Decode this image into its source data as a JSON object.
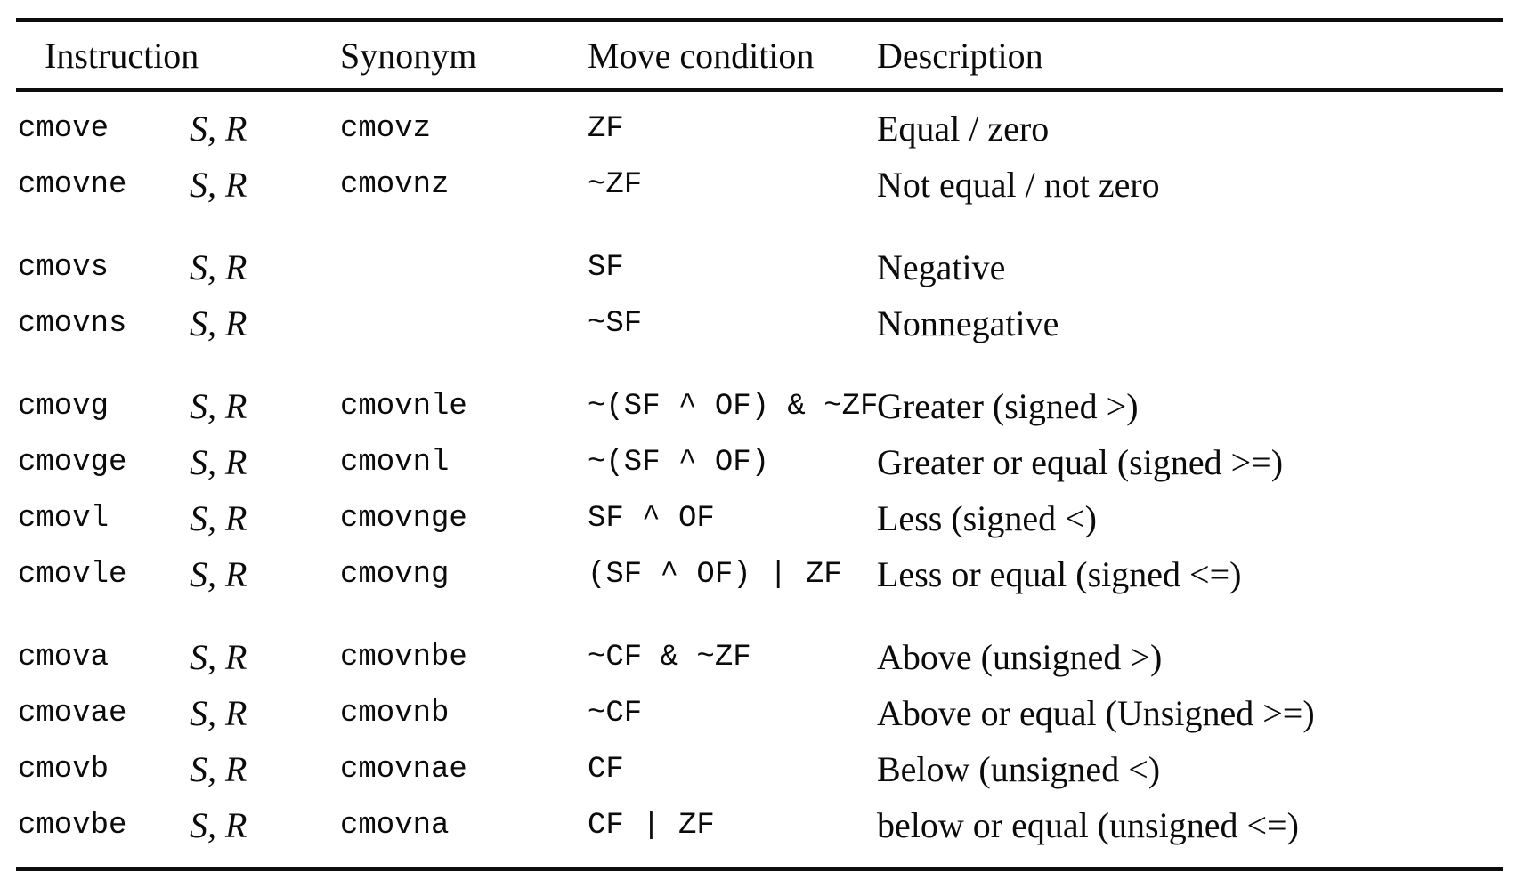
{
  "colors": {
    "background": "#ffffff",
    "text": "#0b0b0b",
    "rule": "#0d0d0d"
  },
  "table": {
    "header": {
      "instruction": "Instruction",
      "synonym": "Synonym",
      "condition": "Move condition",
      "description": "Description"
    },
    "groups": [
      {
        "rows": [
          {
            "instruction": "cmove",
            "operands": "S, R",
            "synonym": "cmovz",
            "condition": "ZF",
            "description": "Equal / zero"
          },
          {
            "instruction": "cmovne",
            "operands": "S, R",
            "synonym": "cmovnz",
            "condition": "~ZF",
            "description": "Not equal / not zero"
          }
        ]
      },
      {
        "rows": [
          {
            "instruction": "cmovs",
            "operands": "S, R",
            "synonym": "",
            "condition": "SF",
            "description": "Negative"
          },
          {
            "instruction": "cmovns",
            "operands": "S, R",
            "synonym": "",
            "condition": "~SF",
            "description": "Nonnegative"
          }
        ]
      },
      {
        "rows": [
          {
            "instruction": "cmovg",
            "operands": "S, R",
            "synonym": "cmovnle",
            "condition": "~(SF ^ OF) & ~ZF",
            "description": "Greater (signed >)"
          },
          {
            "instruction": "cmovge",
            "operands": "S, R",
            "synonym": "cmovnl",
            "condition": "~(SF ^ OF)",
            "description": "Greater or equal (signed >=)"
          },
          {
            "instruction": "cmovl",
            "operands": "S, R",
            "synonym": "cmovnge",
            "condition": "SF ^ OF",
            "description": "Less (signed <)"
          },
          {
            "instruction": "cmovle",
            "operands": "S, R",
            "synonym": "cmovng",
            "condition": "(SF ^ OF) | ZF",
            "description": "Less or equal (signed <=)"
          }
        ]
      },
      {
        "rows": [
          {
            "instruction": "cmova",
            "operands": "S, R",
            "synonym": "cmovnbe",
            "condition": "~CF & ~ZF",
            "description": "Above (unsigned >)"
          },
          {
            "instruction": "cmovae",
            "operands": "S, R",
            "synonym": "cmovnb",
            "condition": "~CF",
            "description": "Above or equal (Unsigned >=)"
          },
          {
            "instruction": "cmovb",
            "operands": "S, R",
            "synonym": "cmovnae",
            "condition": "CF",
            "description": "Below (unsigned <)"
          },
          {
            "instruction": "cmovbe",
            "operands": "S, R",
            "synonym": "cmovna",
            "condition": "CF | ZF",
            "description": "below or equal (unsigned <=)"
          }
        ]
      }
    ]
  }
}
